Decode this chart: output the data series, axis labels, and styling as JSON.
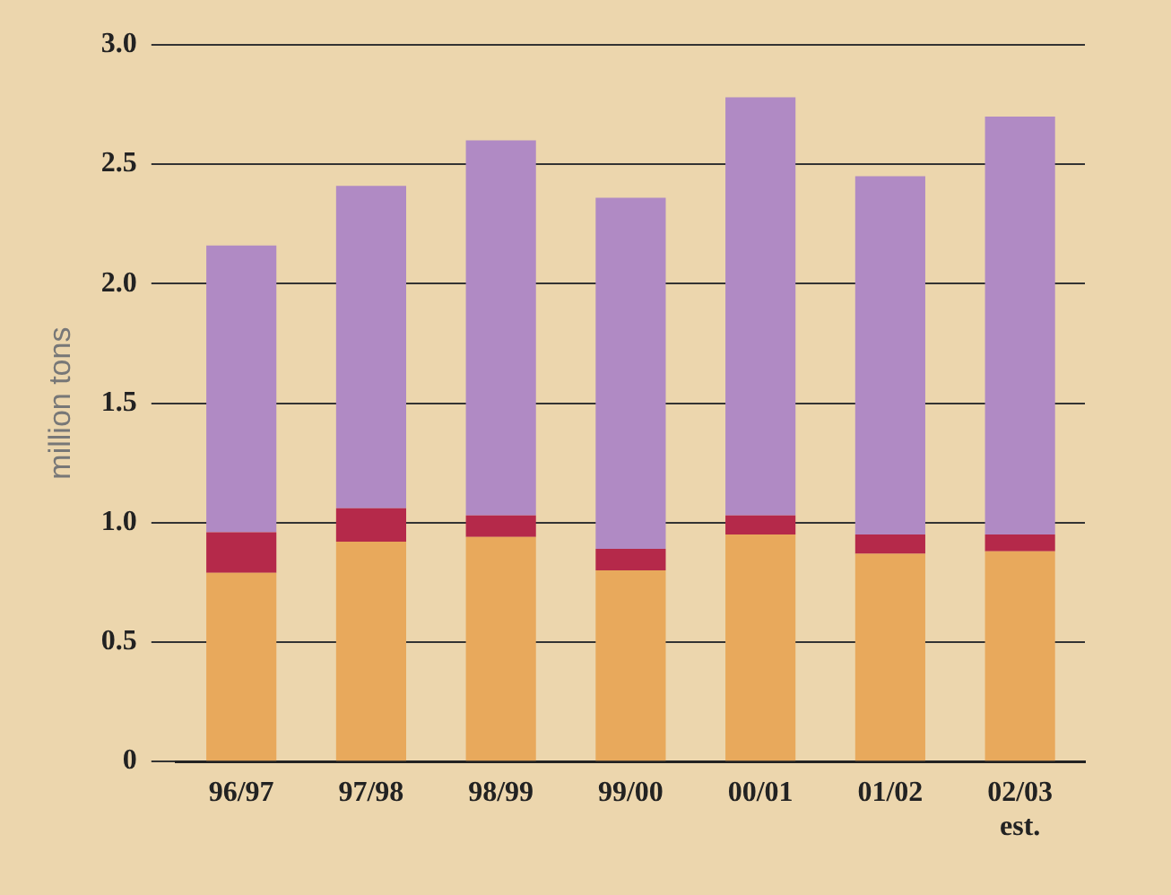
{
  "chart_data": {
    "type": "bar",
    "stacked": true,
    "ylabel": "million tons",
    "categories": [
      "96/97",
      "97/98",
      "98/99",
      "99/00",
      "00/01",
      "01/02",
      "02/03\nest."
    ],
    "series": [
      {
        "color": "#e8a95c",
        "values": [
          0.79,
          0.92,
          0.94,
          0.8,
          0.95,
          0.87,
          0.88
        ]
      },
      {
        "color": "#b5294a",
        "values": [
          0.17,
          0.14,
          0.09,
          0.09,
          0.08,
          0.08,
          0.07
        ]
      },
      {
        "color": "#b08ac4",
        "values": [
          1.2,
          1.35,
          1.57,
          1.47,
          1.75,
          1.5,
          1.75
        ]
      }
    ],
    "ylim": [
      0,
      3
    ],
    "yticks": [
      0,
      0.5,
      {
        "value": 1,
        "label": "1.0"
      },
      1.5,
      {
        "value": 2,
        "label": "2.0"
      },
      2.5,
      {
        "value": 3,
        "label": "3.0"
      }
    ],
    "grid": "y",
    "legend": false
  }
}
